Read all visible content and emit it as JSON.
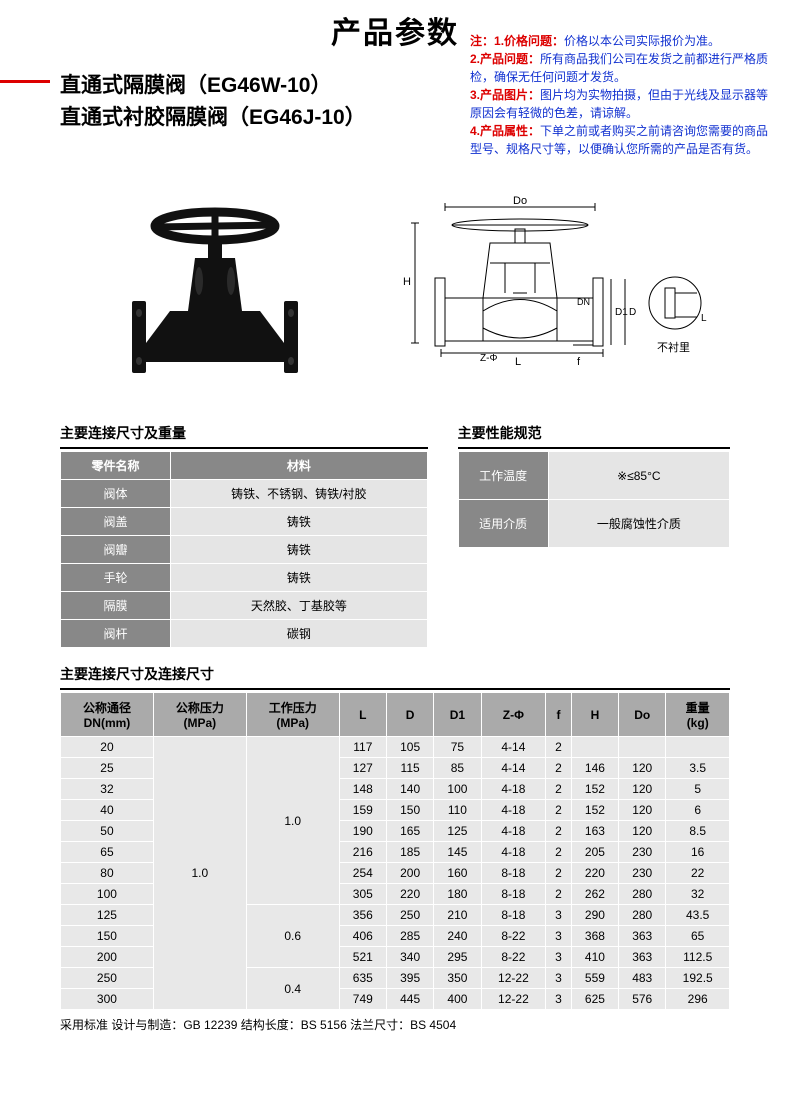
{
  "pageTitle": "产品参数",
  "product": {
    "line1": "直通式隔膜阀（EG46W-10）",
    "line2": "直通式衬胶隔膜阀（EG46J-10）"
  },
  "notes": {
    "label": "注：",
    "items": [
      {
        "num": "1.",
        "title": "价格问题：",
        "text": "价格以本公司实际报价为准。"
      },
      {
        "num": "2.",
        "title": "产品问题：",
        "text": "所有商品我们公司在发货之前都进行严格质检，确保无任何问题才发货。"
      },
      {
        "num": "3.",
        "title": "产品图片：",
        "text": "图片均为实物拍摄，但由于光线及显示器等原因会有轻微的色差，请谅解。"
      },
      {
        "num": "4.",
        "title": "产品属性：",
        "text": "下单之前或者购买之前请咨询您需要的商品型号、规格尺寸等，以便确认您所需的产品是否有货。"
      }
    ]
  },
  "diagramLabels": {
    "Do": "Do",
    "H": "H",
    "D": "D",
    "D1": "D1",
    "DN": "DN",
    "L": "L",
    "f": "f",
    "Z": "Z-Φ",
    "notLined": "不衬里"
  },
  "section1": {
    "title": "主要连接尺寸及重量",
    "headers": [
      "零件名称",
      "材料"
    ],
    "rows": [
      [
        "阀体",
        "铸铁、不锈钢、铸铁/衬胶"
      ],
      [
        "阀盖",
        "铸铁"
      ],
      [
        "阀瓣",
        "铸铁"
      ],
      [
        "手轮",
        "铸铁"
      ],
      [
        "隔膜",
        "天然胶、丁基胶等"
      ],
      [
        "阀杆",
        "碳钢"
      ]
    ]
  },
  "section2": {
    "title": "主要性能规范",
    "rows": [
      [
        "工作温度",
        "※≤85°C"
      ],
      [
        "适用介质",
        "一般腐蚀性介质"
      ]
    ]
  },
  "section3": {
    "title": "主要连接尺寸及连接尺寸",
    "headers": [
      "公称通径\nDN(mm)",
      "公称压力\n(MPa)",
      "工作压力\n(MPa)",
      "L",
      "D",
      "D1",
      "Z-Φ",
      "f",
      "H",
      "Do",
      "重量\n(kg)"
    ],
    "rows": [
      {
        "dn": "20",
        "np": "",
        "wp": "",
        "L": "117",
        "D": "105",
        "D1": "75",
        "Z": "4-14",
        "f": "2",
        "H": "",
        "Do": "",
        "kg": ""
      },
      {
        "dn": "25",
        "np": "",
        "wp": "",
        "L": "127",
        "D": "115",
        "D1": "85",
        "Z": "4-14",
        "f": "2",
        "H": "146",
        "Do": "120",
        "kg": "3.5"
      },
      {
        "dn": "32",
        "np": "",
        "wp": "",
        "L": "148",
        "D": "140",
        "D1": "100",
        "Z": "4-18",
        "f": "2",
        "H": "152",
        "Do": "120",
        "kg": "5"
      },
      {
        "dn": "40",
        "np": "",
        "wp": "",
        "L": "159",
        "D": "150",
        "D1": "110",
        "Z": "4-18",
        "f": "2",
        "H": "152",
        "Do": "120",
        "kg": "6"
      },
      {
        "dn": "50",
        "np": "",
        "wp": "",
        "L": "190",
        "D": "165",
        "D1": "125",
        "Z": "4-18",
        "f": "2",
        "H": "163",
        "Do": "120",
        "kg": "8.5"
      },
      {
        "dn": "65",
        "np": "",
        "wp": "",
        "L": "216",
        "D": "185",
        "D1": "145",
        "Z": "4-18",
        "f": "2",
        "H": "205",
        "Do": "230",
        "kg": "16"
      },
      {
        "dn": "80",
        "np": "",
        "wp": "",
        "L": "254",
        "D": "200",
        "D1": "160",
        "Z": "8-18",
        "f": "2",
        "H": "220",
        "Do": "230",
        "kg": "22"
      },
      {
        "dn": "100",
        "np": "",
        "wp": "",
        "L": "305",
        "D": "220",
        "D1": "180",
        "Z": "8-18",
        "f": "2",
        "H": "262",
        "Do": "280",
        "kg": "32"
      },
      {
        "dn": "125",
        "np": "",
        "wp": "",
        "L": "356",
        "D": "250",
        "D1": "210",
        "Z": "8-18",
        "f": "3",
        "H": "290",
        "Do": "280",
        "kg": "43.5"
      },
      {
        "dn": "150",
        "np": "",
        "wp": "",
        "L": "406",
        "D": "285",
        "D1": "240",
        "Z": "8-22",
        "f": "3",
        "H": "368",
        "Do": "363",
        "kg": "65"
      },
      {
        "dn": "200",
        "np": "",
        "wp": "",
        "L": "521",
        "D": "340",
        "D1": "295",
        "Z": "8-22",
        "f": "3",
        "H": "410",
        "Do": "363",
        "kg": "112.5"
      },
      {
        "dn": "250",
        "np": "",
        "wp": "",
        "L": "635",
        "D": "395",
        "D1": "350",
        "Z": "12-22",
        "f": "3",
        "H": "559",
        "Do": "483",
        "kg": "192.5"
      },
      {
        "dn": "300",
        "np": "",
        "wp": "",
        "L": "749",
        "D": "445",
        "D1": "400",
        "Z": "12-22",
        "f": "3",
        "H": "625",
        "Do": "576",
        "kg": "296"
      }
    ],
    "npMerge": "1.0",
    "wpGroups": [
      {
        "label": "1.0",
        "rows": 8
      },
      {
        "label": "0.6",
        "rows": 3
      },
      {
        "label": "0.4",
        "rows": 2
      }
    ]
  },
  "footer": "采用标准 设计与制造：GB 12239  结构长度：BS 5156  法兰尺寸：BS 4504",
  "colors": {
    "headerBg": "#888888",
    "cellBg": "#e5e5e5",
    "red": "#d00000",
    "blue": "#1030d0"
  }
}
